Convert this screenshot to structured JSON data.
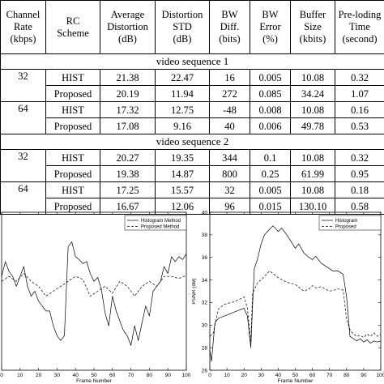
{
  "table": {
    "headers": [
      [
        "Channel",
        "Rate",
        "(kbps)"
      ],
      [
        "RC",
        "Scheme",
        ""
      ],
      [
        "Average",
        "Distortion",
        "(dB)"
      ],
      [
        "Distortion",
        "STD",
        "(dB)"
      ],
      [
        "BW",
        "Diff.",
        "(bits)"
      ],
      [
        "BW",
        "Error",
        "(%)"
      ],
      [
        "Buffer",
        "Size",
        "(kbits)"
      ],
      [
        "Pre-loding",
        "Time",
        "(second)"
      ]
    ],
    "sections": [
      {
        "title": "video sequence 1",
        "groups": [
          {
            "rate": "32",
            "rows": [
              [
                "HIST",
                "21.38",
                "22.47",
                "16",
                "0.005",
                "10.08",
                "0.32"
              ],
              [
                "Proposed",
                "20.19",
                "11.94",
                "272",
                "0.085",
                "34.24",
                "1.07"
              ]
            ]
          },
          {
            "rate": "64",
            "rows": [
              [
                "HIST",
                "17.32",
                "12.75",
                "-48",
                "0.008",
                "10.08",
                "0.16"
              ],
              [
                "Proposed",
                "17.08",
                "9.16",
                "40",
                "0.006",
                "49.78",
                "0.53"
              ]
            ]
          }
        ]
      },
      {
        "title": "video sequence 2",
        "groups": [
          {
            "rate": "32",
            "rows": [
              [
                "HIST",
                "20.27",
                "19.35",
                "344",
                "0.1",
                "10.08",
                "0.32"
              ],
              [
                "Proposed",
                "19.38",
                "14.87",
                "800",
                "0.25",
                "61.99",
                "0.95"
              ]
            ]
          },
          {
            "rate": "64",
            "rows": [
              [
                "HIST",
                "17.25",
                "15.57",
                "32",
                "0.005",
                "10.08",
                "0.18"
              ],
              [
                "Proposed",
                "16.67",
                "12.06",
                "96",
                "0.015",
                "130.10",
                "0.58"
              ]
            ]
          }
        ]
      }
    ]
  },
  "chart_data": [
    {
      "type": "line",
      "xlabel": "Frame Number",
      "ylabel": "",
      "xlim": [
        0,
        100
      ],
      "xticks": [
        "0",
        "10",
        "20",
        "30",
        "40",
        "50",
        "60",
        "70",
        "80",
        "90",
        "100"
      ],
      "ylim": [
        24,
        40
      ],
      "legend": "top-right",
      "series": [
        {
          "name": "Histogram Method",
          "style": "solid",
          "x": [
            0,
            2,
            4,
            6,
            8,
            10,
            12,
            14,
            16,
            18,
            20,
            22,
            24,
            26,
            28,
            30,
            32,
            34,
            36,
            38,
            40,
            42,
            44,
            46,
            48,
            50,
            52,
            54,
            56,
            58,
            60,
            62,
            64,
            66,
            68,
            70,
            72,
            74,
            76,
            78,
            80,
            82,
            84,
            86,
            88,
            90,
            92,
            94,
            96,
            98,
            100
          ],
          "y": [
            33.5,
            35,
            34,
            33.5,
            32.5,
            33.5,
            34.5,
            32.5,
            31.5,
            32,
            31,
            30.5,
            30,
            30,
            28.5,
            27.5,
            27,
            27.5,
            36.5,
            37,
            35.5,
            35.2,
            34.8,
            35,
            33.8,
            33,
            33.4,
            32.2,
            29.8,
            28.5,
            31.5,
            30,
            29,
            28,
            27.5,
            26.5,
            28.5,
            27,
            28.8,
            30.5,
            29.5,
            32,
            32.5,
            33,
            34.5,
            33.8,
            35.5,
            35,
            35.5,
            35.2,
            35.8
          ]
        },
        {
          "name": "Proposed Method",
          "style": "dashed",
          "x": [
            0,
            4,
            8,
            12,
            16,
            20,
            24,
            28,
            32,
            36,
            40,
            44,
            48,
            52,
            56,
            60,
            64,
            68,
            72,
            76,
            80,
            84,
            88,
            92,
            96,
            100
          ],
          "y": [
            33,
            33.5,
            33,
            33.8,
            33,
            32.5,
            31.5,
            32,
            32.5,
            33,
            33.5,
            33.2,
            31.5,
            32,
            32.5,
            31.8,
            33,
            32.5,
            31.5,
            32.5,
            33,
            32.5,
            33.5,
            33.5,
            33.3,
            33.6
          ]
        }
      ]
    },
    {
      "type": "line",
      "xlabel": "Frame Number",
      "ylabel": "PSNR (dB)",
      "xlim": [
        0,
        100
      ],
      "xticks": [
        "0",
        "10",
        "20",
        "30",
        "40",
        "50",
        "60",
        "70",
        "80",
        "90",
        "100"
      ],
      "ylim": [
        26,
        40
      ],
      "yticks": [
        "26",
        "28",
        "30",
        "32",
        "34",
        "36",
        "38",
        "40"
      ],
      "legend": "top-right",
      "series": [
        {
          "name": "Histogram",
          "style": "solid",
          "x": [
            0,
            1,
            3,
            5,
            10,
            15,
            20,
            22,
            24,
            25,
            26,
            28,
            30,
            32,
            35,
            37,
            40,
            42,
            45,
            48,
            50,
            52,
            55,
            58,
            60,
            62,
            65,
            68,
            70,
            72,
            75,
            78,
            80,
            82,
            84,
            86,
            88,
            90,
            92,
            94,
            96,
            98,
            100
          ],
          "y": [
            27.8,
            26.8,
            30.2,
            30.6,
            30.9,
            31.2,
            31.5,
            30.8,
            28.0,
            31.8,
            35.0,
            35.9,
            37.2,
            38.0,
            38.5,
            38.8,
            38.3,
            38.6,
            38.0,
            37.3,
            36.8,
            37.2,
            36.4,
            36.0,
            35.8,
            36.1,
            35.5,
            35.2,
            35.0,
            34.8,
            34.8,
            34.5,
            32.5,
            29.0,
            28.8,
            28.6,
            28.8,
            28.5,
            28.7,
            28.4,
            28.6,
            28.5,
            28.6
          ]
        },
        {
          "name": "Proposed",
          "style": "dashed",
          "x": [
            0,
            2,
            5,
            8,
            10,
            15,
            20,
            22,
            24,
            25,
            28,
            30,
            35,
            40,
            45,
            50,
            55,
            58,
            60,
            62,
            65,
            70,
            75,
            78,
            80,
            82,
            84,
            86,
            88,
            90,
            92,
            94,
            96,
            98,
            100
          ],
          "y": [
            29.0,
            29.3,
            31.4,
            31.8,
            31.9,
            32.1,
            32.5,
            31.5,
            28.5,
            32.8,
            33.8,
            34.0,
            34.8,
            34.2,
            33.8,
            33.6,
            33.0,
            33.2,
            33.5,
            33.3,
            33.4,
            33.0,
            33.2,
            33.1,
            30.5,
            29.6,
            29.2,
            29.0,
            29.1,
            28.9,
            29.2,
            29.0,
            29.3,
            29.0,
            29.2
          ]
        }
      ]
    }
  ]
}
